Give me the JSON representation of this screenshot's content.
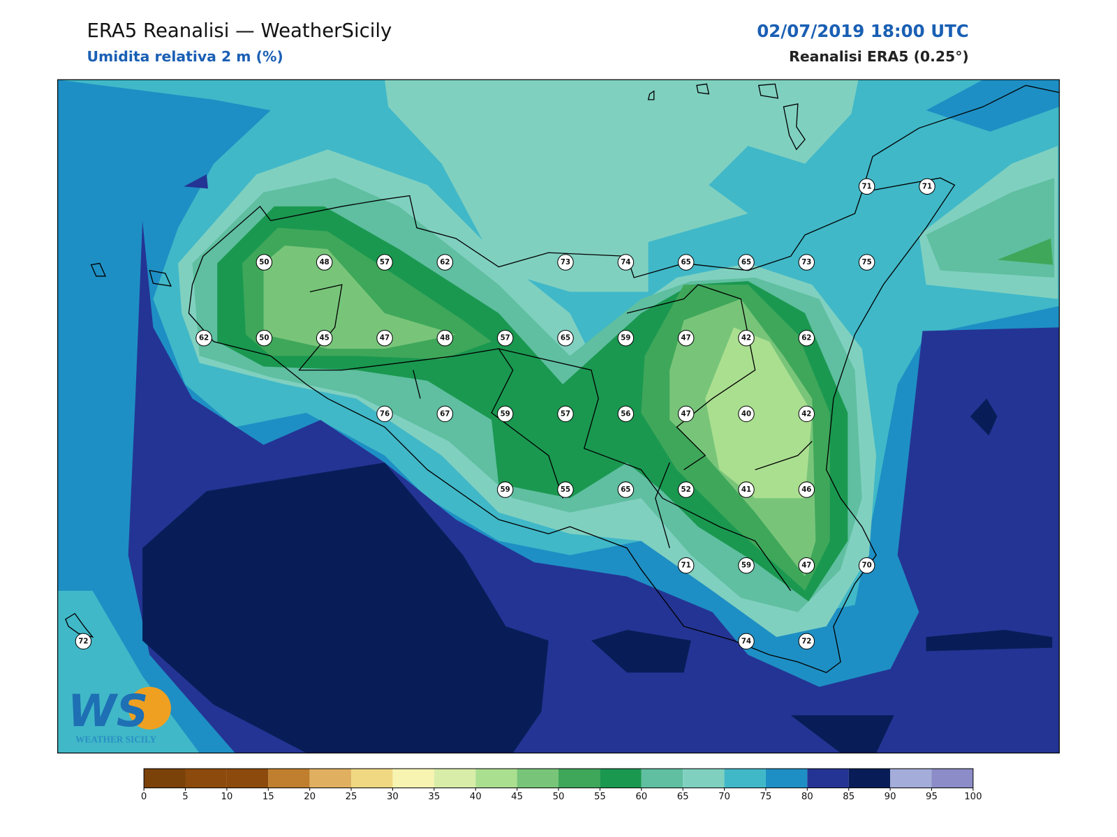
{
  "header": {
    "title": "ERA5 Reanalisi — WeatherSicily",
    "subtitle": "Umidita relativa 2 m (%)",
    "datetime": "02/07/2019 18:00 UTC",
    "source": "Reanalisi ERA5 (0.25°)"
  },
  "map": {
    "stations": [
      71,
      71,
      50,
      48,
      57,
      62,
      73,
      74,
      65,
      65,
      73,
      75,
      62,
      50,
      45,
      47,
      48,
      57,
      65,
      59,
      47,
      42,
      62,
      76,
      67,
      59,
      57,
      56,
      47,
      40,
      42,
      59,
      55,
      65,
      52,
      41,
      46,
      71,
      59,
      47,
      70,
      72,
      74,
      72
    ]
  },
  "logo": {
    "mark": "WS",
    "text": "WEATHER SICILY"
  },
  "colorbar": {
    "ticks": [
      0,
      5,
      10,
      15,
      20,
      25,
      30,
      35,
      40,
      45,
      50,
      55,
      60,
      65,
      70,
      75,
      80,
      85,
      90,
      95,
      100
    ],
    "colors": [
      "#7a4108",
      "#8c4a0c",
      "#8c4a0c",
      "#bf7f2e",
      "#e0b060",
      "#f0d882",
      "#f6f4b0",
      "#d8eda8",
      "#abdf90",
      "#78c57a",
      "#3fa75a",
      "#1a9850",
      "#5fbfa0",
      "#80d0c0",
      "#40b8c8",
      "#1e8fc4",
      "#243494",
      "#081d58",
      "#a4acd9",
      "#8c8cc8"
    ]
  }
}
